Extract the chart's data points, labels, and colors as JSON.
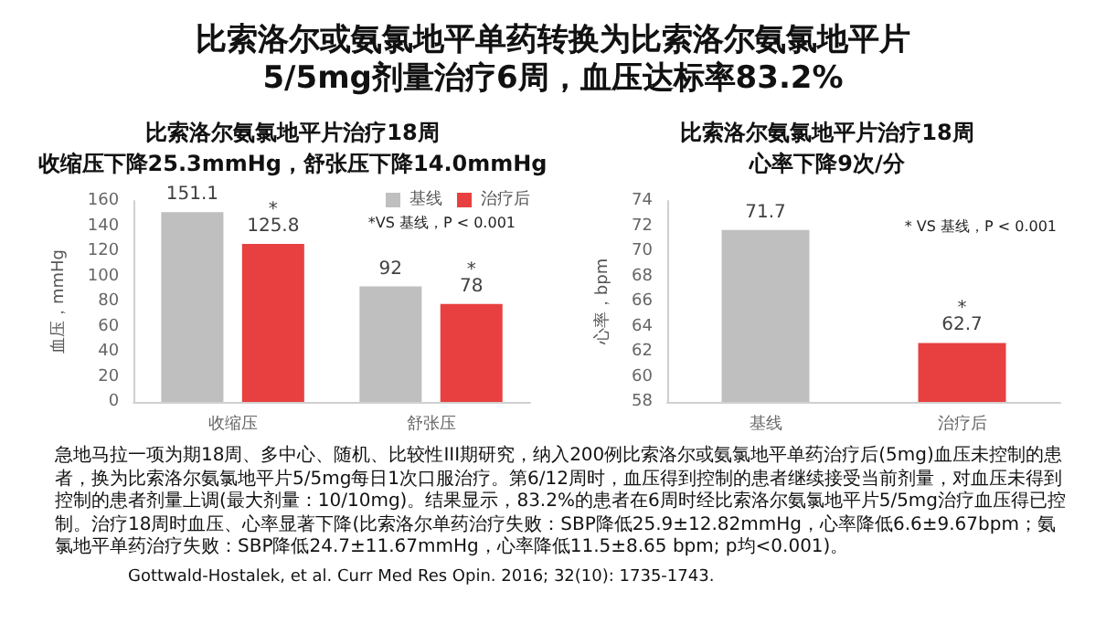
{
  "chart_data": [
    {
      "type": "other",
      "title": "比索洛尔或氨氯地平单药转换为比索洛尔氨氯地平片",
      "subtitle": "5/5mg剂量治疗6周，血压达标率83.2%",
      "annotations": [
        "急地马拉一项为期18周、多中心、随机、比较性III期研究，纳入200例比索洛尔或氨氯地平单药治疗后(5mg)血压未控制的患者，换为比索洛尔氨氯地平片5/5mg每日1次口服治疗。第6/12周时，血压得到控制的患者继续接受当前剂量，对血压未得到控制的患者剂量上调(最大剂量：10/10mg)。结果显示，83.2%的患者在6周时经比索洛尔氨氯地平片5/5mg治疗血压得已控制。治疗18周时血压、心率显著下降(比索洛尔单药治疗失败：SBP降低25.9±12.82mmHg，心率降低6.6±9.67bpm；氨氯地平单药治疗失败：SBP降低24.7±11.67mmHg，心率降低11.5±8.65 bpm; p均<0.001)。",
        "Gottwald-Hostalek, et al. Curr Med Res Opin. 2016; 32(10): 1735-1743."
      ]
    },
    {
      "type": "bar",
      "title": "比索洛尔氨氯地平片治疗18周",
      "subtitle": "收缩压下降25.3mmHg，舒张压下降14.0mmHg",
      "categories": [
        "收缩压",
        "舒张压"
      ],
      "series": [
        {
          "name": "基线",
          "color": "#bfbfbf",
          "values": [
            151.1,
            92
          ],
          "value_labels": [
            "151.1",
            "92"
          ]
        },
        {
          "name": "治疗后",
          "color": "#e84040",
          "values": [
            125.8,
            78
          ],
          "value_labels": [
            "*\n125.8",
            "*\n78"
          ]
        }
      ],
      "ylabel": "血压，mmHg",
      "ylim": [
        0,
        160
      ],
      "yticks": [
        0,
        20,
        40,
        60,
        80,
        100,
        120,
        140,
        160
      ],
      "grid": false,
      "legend": "top right",
      "annotations": [
        "*VS 基线，P < 0.001"
      ]
    },
    {
      "type": "bar",
      "title": "比索洛尔氨氯地平片治疗18周",
      "subtitle": "心率下降9次/分",
      "categories": [
        "基线",
        "治疗后"
      ],
      "values": [
        71.7,
        62.7
      ],
      "colors": [
        "#bfbfbf",
        "#e84040"
      ],
      "value_labels": [
        "71.7",
        "*\n62.7"
      ],
      "ylabel": "心率，bpm",
      "ylim": [
        58,
        74
      ],
      "yticks": [
        58,
        60,
        62,
        64,
        66,
        68,
        70,
        72,
        74
      ],
      "grid": false,
      "legend": false,
      "annotations": [
        "* VS 基线，P < 0.001"
      ]
    }
  ]
}
